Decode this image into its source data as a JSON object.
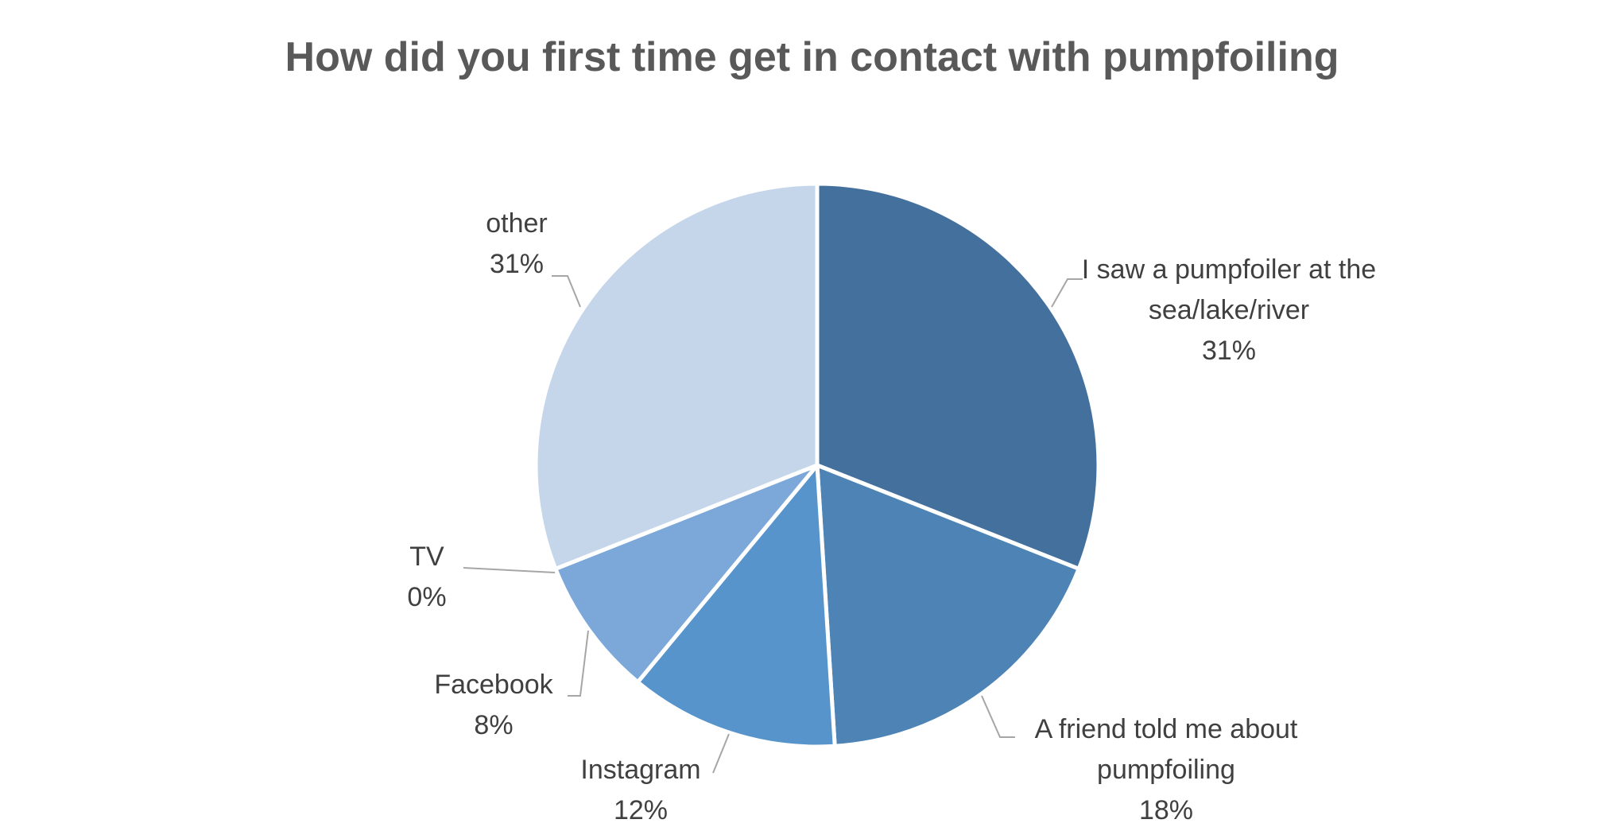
{
  "chart_data": {
    "type": "pie",
    "title": "How did you first time get in contact with pumpfoiling",
    "categories": [
      "I saw a pumpfoiler at the sea/lake/river",
      "A friend told me about pumpfoiling",
      "Instagram",
      "Facebook",
      "TV",
      "other"
    ],
    "values": [
      31,
      18,
      12,
      8,
      0,
      31
    ],
    "value_labels": [
      "31%",
      "18%",
      "12%",
      "8%",
      "0%",
      "31%"
    ],
    "colors": [
      "#43709d",
      "#4d83b5",
      "#5694cb",
      "#7ba8d9",
      "#a9c4e6",
      "#c5d5ea"
    ]
  }
}
